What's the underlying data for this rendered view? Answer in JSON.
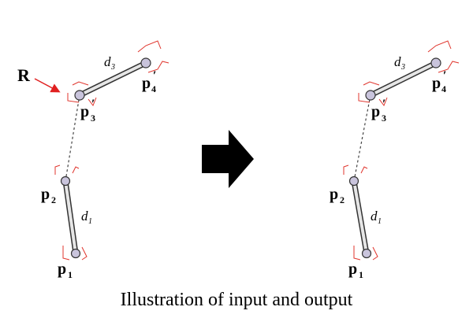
{
  "left_panel": {
    "annotation": "R",
    "labels": {
      "p1": "p",
      "p1_sub": "1",
      "p2": "p",
      "p2_sub": "2",
      "p3": "p",
      "p3_prime": "′",
      "p3_sub": "3",
      "p4": "p",
      "p4_prime": "′",
      "p4_sub": "4",
      "d1": "d",
      "d1_sub": "1",
      "d3": "d",
      "d3_sub": "3"
    }
  },
  "right_panel": {
    "labels": {
      "p1": "p",
      "p1_sub": "1",
      "p2": "p",
      "p2_sub": "2",
      "p3": "p",
      "p3_prime": "′",
      "p3_sub": "3",
      "p4": "p",
      "p4_prime": "′",
      "p4_sub": "4",
      "d1": "d",
      "d1_sub": "1",
      "d3": "d",
      "d3_sub": "3"
    }
  },
  "caption": "Illustration of input and output",
  "colors": {
    "link_fill": "#d9d9d9",
    "link_stroke": "#333333",
    "joint_fill": "#c9c4dc",
    "bracket": "#e0342c",
    "annotation_arrow": "#e02020",
    "arrow": "#000000",
    "text": "#000000"
  }
}
